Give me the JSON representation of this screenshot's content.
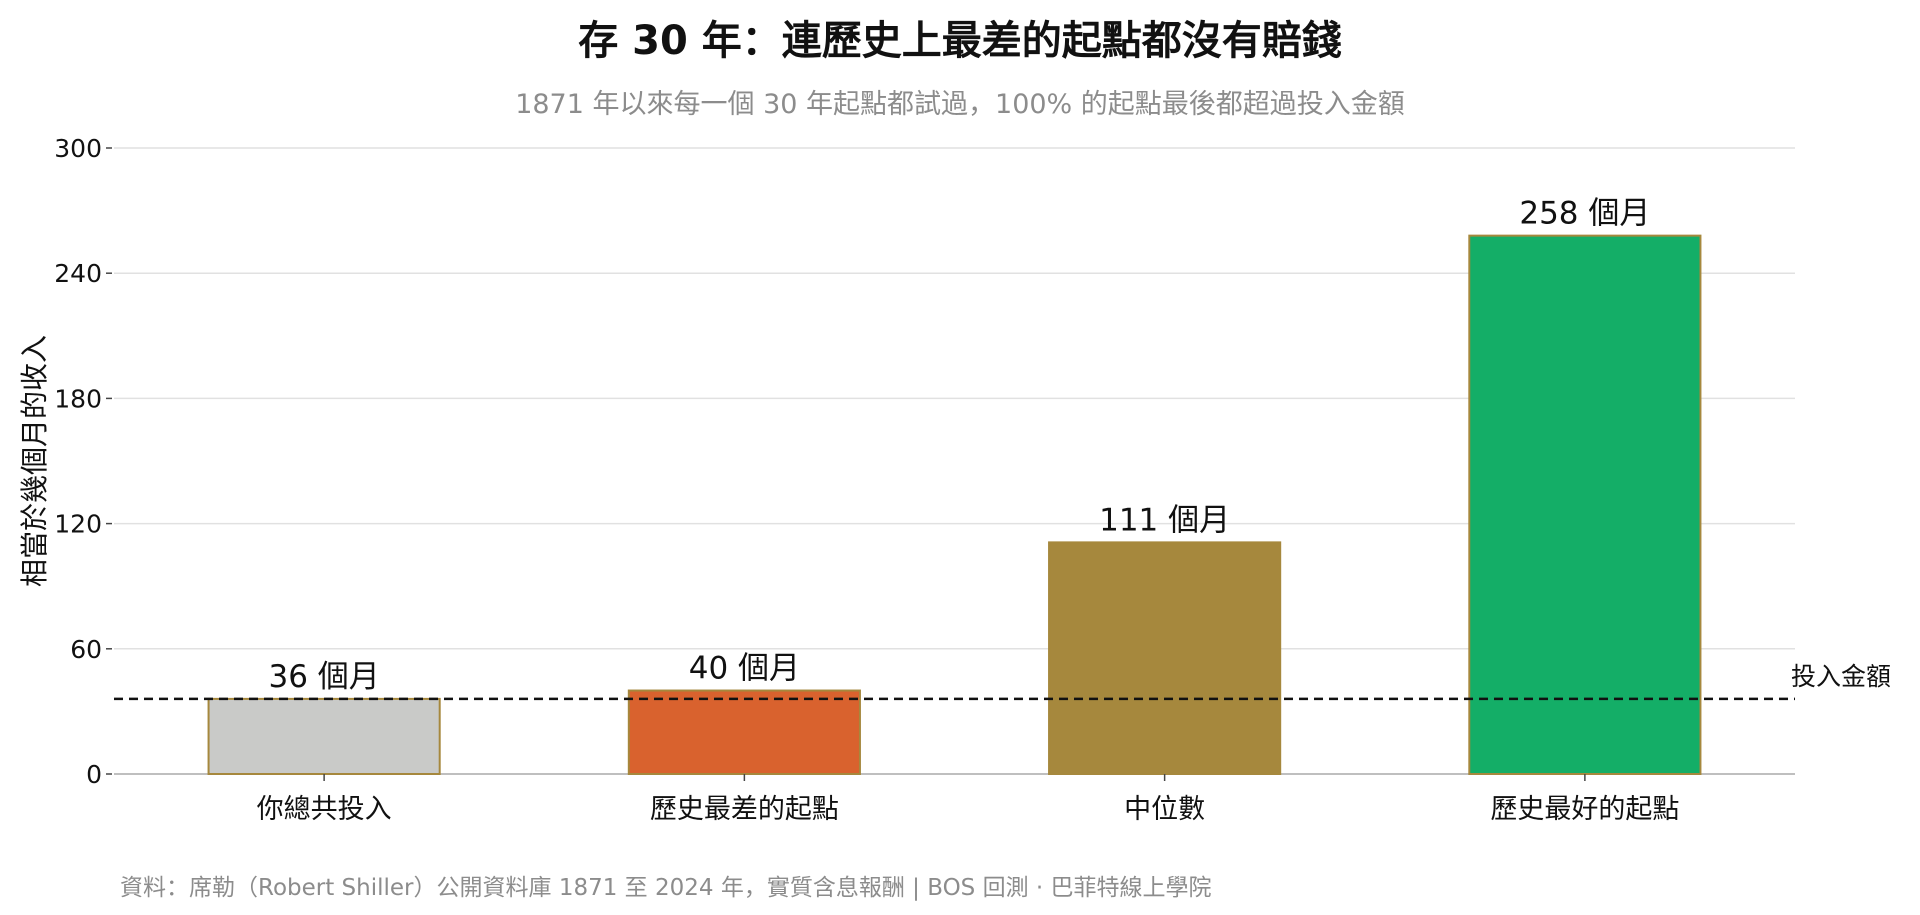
{
  "chart_data": {
    "type": "bar",
    "title": "存 30 年：連歷史上最差的起點都沒有賠錢",
    "subtitle": "1871 年以來每一個 30 年起點都試過，100% 的起點最後都超過投入金額",
    "ylabel": "相當於幾個月的收入",
    "xlabel": "",
    "ylim": [
      0,
      300
    ],
    "yticks": [
      0,
      60,
      120,
      180,
      240,
      300
    ],
    "grid": true,
    "categories": [
      "你總共投入",
      "歷史最差的起點",
      "中位數",
      "歷史最好的起點"
    ],
    "values": [
      36,
      40,
      111,
      258
    ],
    "data_labels": [
      "36 個月",
      "40 個月",
      "111 個月",
      "258 個月"
    ],
    "colors": [
      "#c9cac8",
      "#d9622e",
      "#a6883d",
      "#14ae67"
    ],
    "edge_color": "#a6883d",
    "reference_line": {
      "value": 36,
      "label": "投入金額",
      "style": "dashed"
    },
    "source": "資料：席勒（Robert Shiller）公開資料庫 1871 至 2024 年，實質含息報酬 | BOS 回測 ·  巴菲特線上學院"
  }
}
